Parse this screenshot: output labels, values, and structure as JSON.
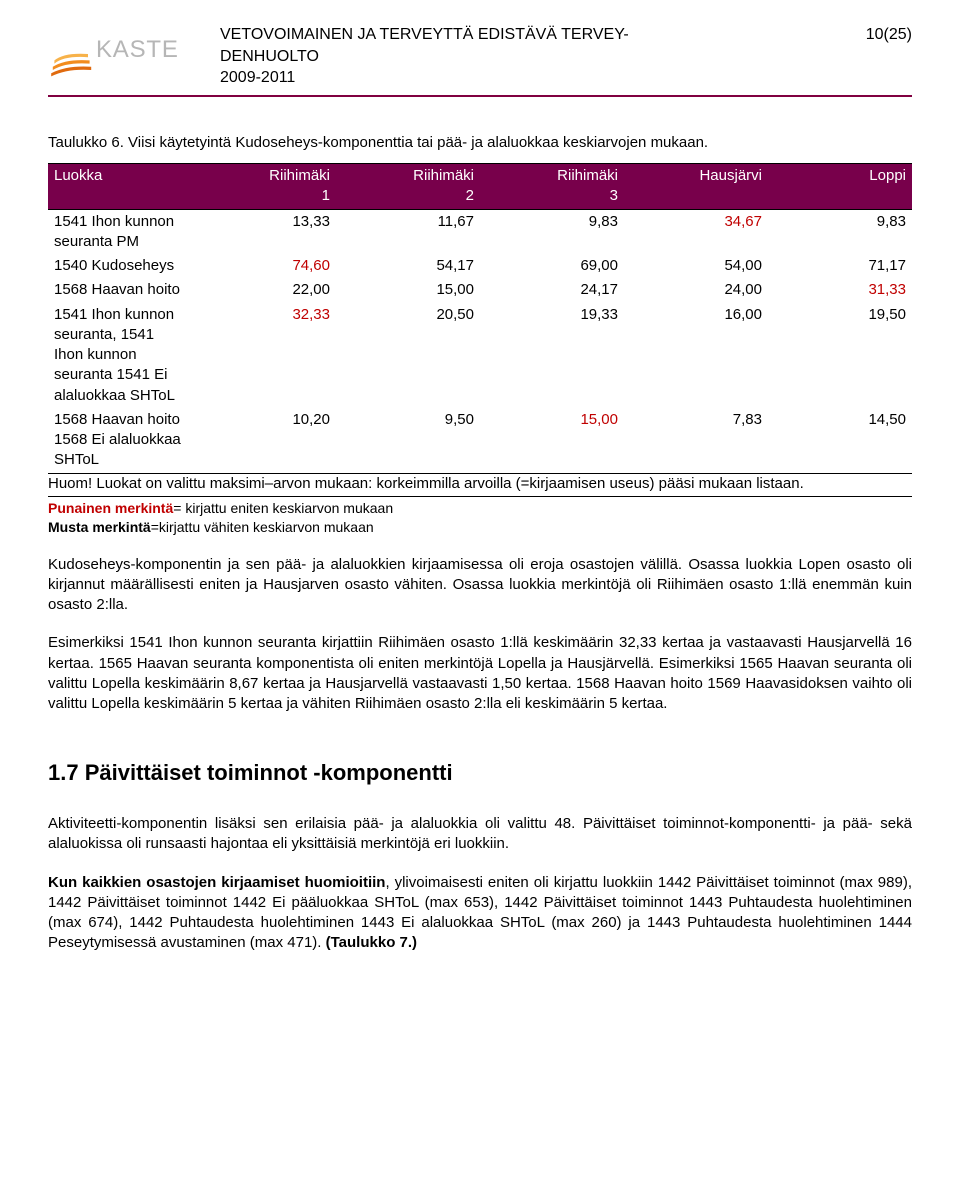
{
  "header": {
    "title_line1": "VETOVOIMAINEN JA TERVEYTTÄ EDISTÄVÄ TERVEY-",
    "title_line2": "DENHUOLTO",
    "title_line3": "2009-2011",
    "page_number": "10(25)"
  },
  "logo": {
    "text": "KASTE",
    "gray": "#b6b6b6",
    "orange1": "#f7b24a",
    "orange2": "#f28c1e",
    "orange3": "#e06a0e"
  },
  "caption": "Taulukko 6. Viisi käytetyintä Kudoseheys-komponenttia tai pää- ja alaluokkaa keskiarvojen mukaan.",
  "table": {
    "header_bg": "#78004b",
    "header_fg": "#ffffff",
    "columns": [
      {
        "label1": "Luokka",
        "label2": ""
      },
      {
        "label1": "Riihimäki",
        "label2": "1"
      },
      {
        "label1": "Riihimäki",
        "label2": "2"
      },
      {
        "label1": "Riihimäki",
        "label2": "3"
      },
      {
        "label1": "Hausjärvi",
        "label2": ""
      },
      {
        "label1": "Loppi",
        "label2": ""
      }
    ],
    "rows": [
      {
        "label": "1541 Ihon kunnon seuranta PM",
        "cells": [
          {
            "v": "13,33",
            "red": false
          },
          {
            "v": "11,67",
            "red": false
          },
          {
            "v": "9,83",
            "red": false
          },
          {
            "v": "34,67",
            "red": true
          },
          {
            "v": "9,83",
            "red": false
          }
        ]
      },
      {
        "label": "1540 Kudoseheys",
        "cells": [
          {
            "v": "74,60",
            "red": true
          },
          {
            "v": "54,17",
            "red": false
          },
          {
            "v": "69,00",
            "red": false
          },
          {
            "v": "54,00",
            "red": false
          },
          {
            "v": "71,17",
            "red": false
          }
        ]
      },
      {
        "label": "1568 Haavan hoito",
        "cells": [
          {
            "v": "22,00",
            "red": false
          },
          {
            "v": "15,00",
            "red": false
          },
          {
            "v": "24,17",
            "red": false
          },
          {
            "v": "24,00",
            "red": false
          },
          {
            "v": "31,33",
            "red": true
          }
        ]
      },
      {
        "label": "1541 Ihon kunnon seuranta, 1541 Ihon kunnon seuranta 1541 Ei alaluokkaa SHToL",
        "cells": [
          {
            "v": "32,33",
            "red": true
          },
          {
            "v": "20,50",
            "red": false
          },
          {
            "v": "19,33",
            "red": false
          },
          {
            "v": "16,00",
            "red": false
          },
          {
            "v": "19,50",
            "red": false
          }
        ]
      },
      {
        "label": "1568 Haavan hoito 1568 Ei alaluokkaa SHToL",
        "cells": [
          {
            "v": "10,20",
            "red": false
          },
          {
            "v": "9,50",
            "red": false
          },
          {
            "v": "15,00",
            "red": true
          },
          {
            "v": "7,83",
            "red": false
          },
          {
            "v": "14,50",
            "red": false
          }
        ]
      }
    ],
    "huom": "Huom! Luokat on valittu maksimi–arvon mukaan: korkeimmilla arvoilla (=kirjaamisen useus) pääsi mukaan listaan."
  },
  "legend": {
    "red_label": "Punainen merkintä",
    "red_desc": "= kirjattu eniten keskiarvon mukaan",
    "black_label": "Musta merkintä",
    "black_desc": "=kirjattu vähiten keskiarvon mukaan"
  },
  "paragraphs": {
    "p1": "Kudoseheys-komponentin ja sen pää- ja alaluokkien kirjaamisessa oli eroja osastojen välillä. Osassa luokkia Lopen osasto oli kirjannut määrällisesti eniten ja Hausjarven osasto vähiten. Osassa luokkia merkintöjä oli Riihimäen osasto 1:llä enemmän kuin osasto 2:lla.",
    "p2": "Esimerkiksi 1541 Ihon kunnon seuranta kirjattiin Riihimäen osasto 1:llä keskimäärin 32,33 kertaa ja vastaavasti Hausjarvellä 16 kertaa. 1565 Haavan seuranta komponentista oli eniten merkintöjä Lopella ja Hausjärvellä. Esimerkiksi 1565 Haavan seuranta oli valittu Lopella keskimäärin 8,67 kertaa ja Hausjarvellä vastaavasti 1,50 kertaa. 1568 Haavan hoito 1569 Haavasidoksen vaihto oli valittu Lopella keskimäärin 5 kertaa ja vähiten Riihimäen osasto 2:lla eli keskimäärin 5 kertaa."
  },
  "section": {
    "title": "1.7 Päivittäiset toiminnot -komponentti",
    "p3": "Aktiviteetti-komponentin lisäksi sen erilaisia pää- ja alaluokkia oli valittu 48. Päivittäiset toiminnot-komponentti- ja pää- sekä alaluokissa oli runsaasti hajontaa eli yksittäisiä merkintöjä eri luokkiin.",
    "p4_bold": "Kun kaikkien osastojen kirjaamiset huomioitiin",
    "p4_rest": ", ylivoimaisesti eniten oli kirjattu luokkiin 1442 Päivittäiset toiminnot (max 989), 1442 Päivittäiset toiminnot 1442 Ei pääluokkaa SHToL (max 653), 1442 Päivittäiset toiminnot 1443 Puhtaudesta huolehtiminen (max 674), 1442 Puhtaudesta huolehtiminen 1443 Ei alaluokkaa SHToL (max 260) ja 1443 Puhtaudesta huolehtiminen 1444 Peseytymisessä avustaminen (max 471). ",
    "p4_bold2": "(Taulukko 7.)"
  },
  "colors": {
    "rule": "#800040",
    "red_text": "#c00000"
  }
}
